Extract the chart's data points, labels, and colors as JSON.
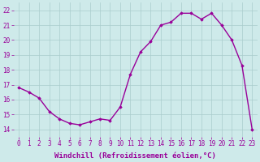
{
  "x": [
    0,
    1,
    2,
    3,
    4,
    5,
    6,
    7,
    8,
    9,
    10,
    11,
    12,
    13,
    14,
    15,
    16,
    17,
    18,
    19,
    20,
    21,
    22,
    23
  ],
  "y": [
    16.8,
    16.5,
    16.1,
    15.2,
    14.7,
    14.4,
    14.3,
    14.5,
    14.7,
    14.6,
    15.5,
    17.7,
    19.2,
    19.9,
    21.0,
    21.2,
    21.8,
    21.8,
    21.4,
    21.8,
    21.0,
    20.0,
    18.3,
    14.0
  ],
  "line_color": "#990099",
  "marker": "D",
  "marker_size": 1.8,
  "xlabel": "Windchill (Refroidissement éolien,°C)",
  "ylabel_ticks": [
    14,
    15,
    16,
    17,
    18,
    19,
    20,
    21,
    22
  ],
  "xtick_labels": [
    "0",
    "1",
    "2",
    "3",
    "4",
    "5",
    "6",
    "7",
    "8",
    "9",
    "10",
    "11",
    "12",
    "13",
    "14",
    "15",
    "16",
    "17",
    "18",
    "19",
    "20",
    "21",
    "22",
    "23"
  ],
  "ylim": [
    13.5,
    22.5
  ],
  "xlim": [
    -0.5,
    23.5
  ],
  "bg_color": "#ceeaea",
  "grid_color": "#aacccc",
  "xlabel_fontsize": 6.5,
  "tick_fontsize": 5.5,
  "label_color": "#990099",
  "linewidth": 1.0
}
